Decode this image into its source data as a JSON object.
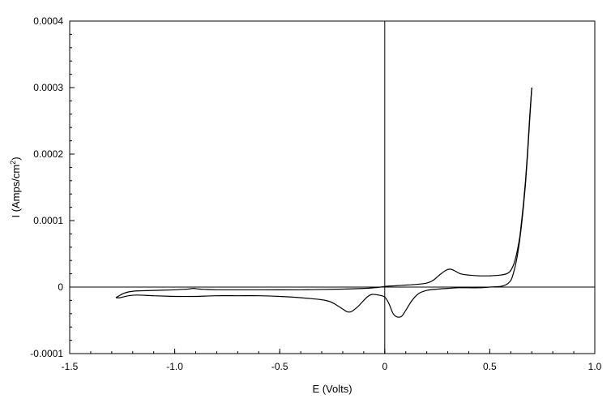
{
  "chart_data": {
    "type": "line",
    "title": "",
    "xlabel": "E (Volts)",
    "ylabel": {
      "prefix": "I (Amps/cm",
      "superscript": "2",
      "suffix": ")"
    },
    "xlim": [
      -1.5,
      1.0
    ],
    "ylim": [
      -0.0001,
      0.0004
    ],
    "x_ticks": [
      {
        "value": -1.5,
        "label": "-1.5"
      },
      {
        "value": -1.0,
        "label": "-1.0"
      },
      {
        "value": -0.5,
        "label": "-0.5"
      },
      {
        "value": 0,
        "label": "0"
      },
      {
        "value": 0.5,
        "label": "0.5"
      },
      {
        "value": 1.0,
        "label": "1.0"
      }
    ],
    "y_ticks": [
      {
        "value": -0.0001,
        "label": "-0.0001"
      },
      {
        "value": 0,
        "label": "0"
      },
      {
        "value": 0.0001,
        "label": "0.0001"
      },
      {
        "value": 0.0002,
        "label": "0.0002"
      },
      {
        "value": 0.0003,
        "label": "0.0003"
      },
      {
        "value": 0.0004,
        "label": "0.0004"
      }
    ],
    "x_minor_step": 0.1,
    "y_minor_step": 2e-05,
    "grid": false,
    "reference_lines": {
      "x": 0,
      "y": 0
    },
    "legend": "none",
    "line_color": "#000000",
    "series": [
      {
        "x": [
          -1.28,
          -1.24,
          -1.19,
          -1.1,
          -1.0,
          -0.94,
          -0.91,
          -0.88,
          -0.8,
          -0.6,
          -0.4,
          -0.2,
          -0.1,
          -0.05,
          -0.02,
          0.0,
          0.05,
          0.1,
          0.15,
          0.2,
          0.23,
          0.26,
          0.29,
          0.31,
          0.33,
          0.36,
          0.4,
          0.45,
          0.5,
          0.55,
          0.58,
          0.6,
          0.62,
          0.64,
          0.65,
          0.66,
          0.67,
          0.68,
          0.69,
          0.7
        ],
        "y": [
          -1.6e-05,
          -9e-06,
          -6e-06,
          -5e-06,
          -4e-06,
          -3e-06,
          -2e-06,
          -3e-06,
          -4e-06,
          -4e-06,
          -4e-06,
          -3e-06,
          -2e-06,
          -1e-06,
          0.0,
          1e-06,
          2e-06,
          3e-06,
          4e-06,
          6e-06,
          1e-05,
          1.8e-05,
          2.5e-05,
          2.7e-05,
          2.5e-05,
          2e-05,
          1.8e-05,
          1.7e-05,
          1.7e-05,
          1.8e-05,
          2e-05,
          2.5e-05,
          4e-05,
          7e-05,
          9.5e-05,
          0.000125,
          0.00016,
          0.000205,
          0.000255,
          0.0003
        ]
      },
      {
        "x": [
          0.7,
          0.69,
          0.68,
          0.67,
          0.66,
          0.65,
          0.64,
          0.63,
          0.62,
          0.61,
          0.6,
          0.58,
          0.55,
          0.5,
          0.45,
          0.4,
          0.35,
          0.3,
          0.25,
          0.2,
          0.16,
          0.13,
          0.1,
          0.08,
          0.06,
          0.04,
          0.02,
          0.0,
          -0.03,
          -0.06,
          -0.08,
          -0.1,
          -0.13,
          -0.16,
          -0.18,
          -0.2,
          -0.23,
          -0.26,
          -0.3,
          -0.4,
          -0.5,
          -0.6,
          -0.7,
          -0.8,
          -0.9,
          -1.0,
          -1.1,
          -1.18,
          -1.22,
          -1.26,
          -1.28
        ],
        "y": [
          0.0003,
          0.00025,
          0.0002,
          0.000155,
          0.00012,
          9e-05,
          6.5e-05,
          4.5e-05,
          3e-05,
          1.8e-05,
          1e-05,
          4e-06,
          1e-06,
          0.0,
          -1e-06,
          -1e-06,
          -1e-06,
          -2e-06,
          -3e-06,
          -5e-06,
          -1e-05,
          -2e-05,
          -3.5e-05,
          -4.4e-05,
          -4.5e-05,
          -4e-05,
          -2.5e-05,
          -1.5e-05,
          -1.2e-05,
          -1.1e-05,
          -1.4e-05,
          -2e-05,
          -3e-05,
          -3.7e-05,
          -3.7e-05,
          -3.3e-05,
          -2.7e-05,
          -2.2e-05,
          -1.9e-05,
          -1.6e-05,
          -1.4e-05,
          -1.3e-05,
          -1.3e-05,
          -1.3e-05,
          -1.4e-05,
          -1.4e-05,
          -1.3e-05,
          -1.2e-05,
          -1.3e-05,
          -1.6e-05,
          -1.6e-05
        ]
      }
    ]
  }
}
